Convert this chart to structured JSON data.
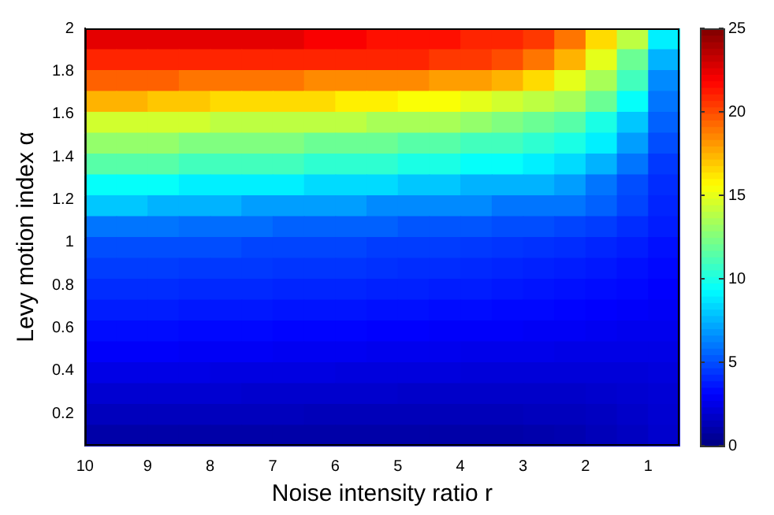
{
  "chart_data": {
    "type": "heatmap",
    "xlabel": "Noise intensity ratio r",
    "ylabel": "Levy motion index α",
    "xlim": [
      10,
      0.5
    ],
    "xticks": [
      10,
      9,
      8,
      7,
      6,
      5,
      4,
      3,
      2,
      1
    ],
    "ylim": [
      0.05,
      2
    ],
    "yticks": [
      0.2,
      0.4,
      0.6,
      0.8,
      1,
      1.2,
      1.4,
      1.6,
      1.8,
      2
    ],
    "clim": [
      0,
      25
    ],
    "cticks": [
      0,
      5,
      10,
      15,
      20,
      25
    ],
    "cells": [
      [
        22.5,
        22.5,
        22.5,
        22.5,
        22.5,
        22.5,
        22.5,
        22,
        22,
        21.5,
        21.5,
        21.5,
        21,
        21,
        20.5,
        19,
        16.5,
        14,
        9
      ],
      [
        21,
        21,
        21,
        21,
        21,
        21,
        21,
        21,
        21,
        21,
        21,
        20.5,
        20.5,
        20,
        19,
        17.5,
        15,
        12,
        7.5
      ],
      [
        19.5,
        19.5,
        19.5,
        19,
        19,
        19,
        19,
        18.5,
        18.5,
        18.5,
        18.5,
        18,
        18,
        17.5,
        16.5,
        15,
        13.5,
        11,
        6.5
      ],
      [
        17.5,
        17.5,
        17,
        17,
        16.5,
        16.5,
        16.5,
        16.5,
        16,
        16,
        15.5,
        15.5,
        15,
        14.5,
        14,
        13.5,
        12,
        9.5,
        6
      ],
      [
        14.5,
        14.5,
        14.5,
        14.5,
        14,
        14,
        14,
        14,
        14,
        13.5,
        13.5,
        13.5,
        13,
        12.5,
        12,
        11.5,
        10,
        8,
        5.5
      ],
      [
        13,
        13,
        13,
        12.5,
        12.5,
        12.5,
        12.5,
        12,
        12,
        12,
        11.5,
        11.5,
        11,
        11,
        10.5,
        10,
        9,
        7,
        5
      ],
      [
        11.5,
        11.5,
        11.5,
        11,
        11,
        11,
        11,
        10.5,
        10.5,
        10.5,
        10,
        10,
        9.5,
        9.5,
        9,
        8.5,
        7.5,
        6,
        4.5
      ],
      [
        9.5,
        9.5,
        9.5,
        9,
        9,
        9,
        9,
        8.5,
        8.5,
        8.5,
        8,
        8,
        7.5,
        7.5,
        7.5,
        7,
        6,
        5,
        4.2
      ],
      [
        8,
        8,
        7.5,
        7.5,
        7.5,
        7,
        7,
        7,
        7,
        6.5,
        6.5,
        6.5,
        6.5,
        6,
        6,
        6,
        5.5,
        4.8,
        4
      ],
      [
        6,
        6,
        6,
        5.8,
        5.8,
        5.8,
        5.5,
        5.5,
        5.5,
        5.5,
        5.2,
        5.2,
        5.2,
        5,
        5,
        4.8,
        4.6,
        4.2,
        3.8
      ],
      [
        5,
        5,
        5,
        5,
        5,
        4.8,
        4.8,
        4.8,
        4.8,
        4.6,
        4.6,
        4.6,
        4.5,
        4.4,
        4.3,
        4.2,
        4,
        3.8,
        3.5
      ],
      [
        4.6,
        4.6,
        4.6,
        4.5,
        4.5,
        4.5,
        4.4,
        4.4,
        4.4,
        4.3,
        4.2,
        4.2,
        4.1,
        4,
        3.9,
        3.8,
        3.7,
        3.5,
        3.3
      ],
      [
        4.2,
        4.2,
        4.2,
        4.1,
        4.1,
        4.1,
        4,
        4,
        4,
        3.9,
        3.9,
        3.8,
        3.8,
        3.7,
        3.6,
        3.5,
        3.4,
        3.3,
        3.1
      ],
      [
        3.8,
        3.8,
        3.8,
        3.7,
        3.7,
        3.7,
        3.6,
        3.6,
        3.6,
        3.5,
        3.5,
        3.4,
        3.4,
        3.3,
        3.3,
        3.2,
        3.1,
        3,
        2.9
      ],
      [
        3.4,
        3.4,
        3.4,
        3.3,
        3.3,
        3.3,
        3.2,
        3.2,
        3.2,
        3.1,
        3.1,
        3,
        3,
        3,
        2.9,
        2.9,
        2.8,
        2.7,
        2.7
      ],
      [
        3,
        3,
        3,
        2.9,
        2.9,
        2.9,
        2.8,
        2.8,
        2.8,
        2.7,
        2.7,
        2.7,
        2.6,
        2.6,
        2.6,
        2.5,
        2.5,
        2.5,
        2.5
      ],
      [
        2.5,
        2.5,
        2.5,
        2.5,
        2.4,
        2.4,
        2.4,
        2.4,
        2.3,
        2.3,
        2.3,
        2.3,
        2.2,
        2.2,
        2.2,
        2.2,
        2.2,
        2.2,
        2.3
      ],
      [
        2,
        2,
        2,
        2,
        2,
        1.9,
        1.9,
        1.9,
        1.9,
        1.9,
        1.8,
        1.8,
        1.8,
        1.8,
        1.8,
        1.8,
        1.9,
        2,
        2.1
      ],
      [
        1.5,
        1.5,
        1.5,
        1.5,
        1.5,
        1.5,
        1.5,
        1.4,
        1.4,
        1.4,
        1.4,
        1.4,
        1.4,
        1.4,
        1.5,
        1.5,
        1.6,
        1.8,
        2
      ],
      [
        1,
        1,
        1,
        1,
        1,
        1,
        1,
        1,
        1,
        1,
        1,
        1,
        1,
        1,
        1.1,
        1.2,
        1.4,
        1.6,
        1.9
      ]
    ]
  }
}
